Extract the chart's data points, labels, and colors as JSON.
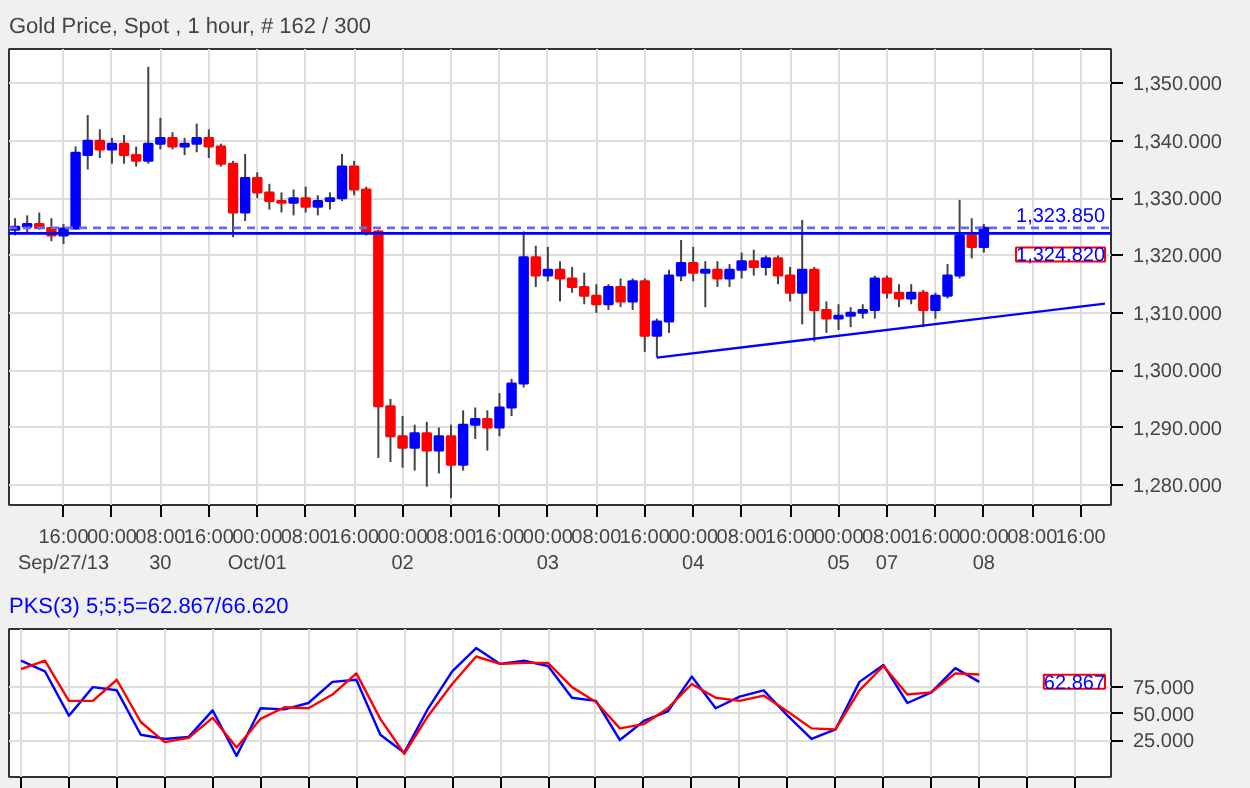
{
  "chart_data": [
    {
      "type": "candlestick",
      "title": "Gold Price, Spot , 1 hour, # 162 / 300",
      "grid": true,
      "categories": [
        null,
        null,
        null,
        null,
        "16:00\nSep/27/13",
        null,
        null,
        null,
        "00:00",
        null,
        null,
        null,
        "08:00\n30",
        null,
        null,
        null,
        "16:00",
        null,
        null,
        null,
        "00:00\nOct/01",
        null,
        null,
        null,
        "08:00",
        null,
        null,
        null,
        "16:00",
        null,
        null,
        null,
        "00:00\n02",
        null,
        null,
        null,
        "08:00",
        null,
        null,
        null,
        "16:00",
        null,
        null,
        null,
        "00:00\n03",
        null,
        null,
        null,
        "08:00",
        null,
        null,
        null,
        "16:00",
        null,
        null,
        null,
        "00:00\n04",
        null,
        null,
        null,
        "08:00",
        null,
        null,
        null,
        "16:00",
        null,
        null,
        null,
        "00:00\n05",
        null,
        null,
        null,
        "08:00\n07",
        null,
        null,
        null,
        "16:00",
        null,
        null,
        null,
        "00:00\n08",
        null,
        null,
        null,
        "08:00",
        null,
        null,
        null,
        "16:00",
        null,
        null
      ],
      "ohlc": [
        [
          1324.5,
          1326.5,
          1323.5,
          1325
        ],
        [
          1325,
          1327,
          1324,
          1325.5
        ],
        [
          1325.5,
          1327.5,
          1324.5,
          1324.8
        ],
        [
          1324.8,
          1326.5,
          1322.5,
          1323.5
        ],
        [
          1323.5,
          1325.5,
          1322,
          1324.7
        ],
        [
          1324.7,
          1339,
          1324.5,
          1337.9
        ],
        [
          1337.5,
          1344.5,
          1335,
          1340
        ],
        [
          1340,
          1342,
          1337,
          1338.5
        ],
        [
          1338.5,
          1340.5,
          1336,
          1339.5
        ],
        [
          1339.5,
          1341,
          1336,
          1337.5
        ],
        [
          1337.5,
          1339,
          1335.5,
          1336.5
        ],
        [
          1336.5,
          1352.9,
          1336,
          1339.5
        ],
        [
          1339.5,
          1344,
          1338.5,
          1340.5
        ],
        [
          1340.5,
          1341.5,
          1338.5,
          1339
        ],
        [
          1339,
          1340.5,
          1337.5,
          1339.5
        ],
        [
          1339.5,
          1343,
          1338,
          1340.5
        ],
        [
          1340.5,
          1342,
          1337,
          1339
        ],
        [
          1339,
          1339.5,
          1335.5,
          1336
        ],
        [
          1336,
          1336.5,
          1323.2,
          1327.5
        ],
        [
          1327.5,
          1337.7,
          1326,
          1333.5
        ],
        [
          1333.5,
          1334.5,
          1330,
          1331
        ],
        [
          1331,
          1332.5,
          1328,
          1329.5
        ],
        [
          1329.5,
          1331,
          1327.5,
          1329.2
        ],
        [
          1329.2,
          1331.5,
          1327,
          1330
        ],
        [
          1330,
          1332,
          1327.5,
          1328.5
        ],
        [
          1328.5,
          1330.5,
          1327,
          1329.5
        ],
        [
          1329.5,
          1331,
          1328,
          1330
        ],
        [
          1330,
          1337.7,
          1329.5,
          1335.5
        ],
        [
          1335.5,
          1336.5,
          1330.5,
          1331.5
        ],
        [
          1331.5,
          1332,
          1323.5,
          1324.2
        ],
        [
          1324.2,
          1324.5,
          1284.7,
          1293.7
        ],
        [
          1293.7,
          1295,
          1284,
          1288.5
        ],
        [
          1288.5,
          1292,
          1283,
          1286.5
        ],
        [
          1286.5,
          1290.5,
          1282.5,
          1289
        ],
        [
          1289,
          1291,
          1279.7,
          1286
        ],
        [
          1286,
          1290,
          1282,
          1288.5
        ],
        [
          1288.5,
          1290.5,
          1277.7,
          1283.5
        ],
        [
          1283.5,
          1293,
          1282.5,
          1290.5
        ],
        [
          1290.5,
          1293.5,
          1288,
          1291.5
        ],
        [
          1291.5,
          1293,
          1286,
          1290
        ],
        [
          1290,
          1296,
          1288.5,
          1293.5
        ],
        [
          1293.5,
          1298.5,
          1292,
          1297.7
        ],
        [
          1297.7,
          1324.2,
          1297,
          1319.7
        ],
        [
          1319.7,
          1321.7,
          1314.5,
          1316.5
        ],
        [
          1316.5,
          1321.5,
          1315.5,
          1317.5
        ],
        [
          1317.5,
          1319,
          1312,
          1316
        ],
        [
          1316,
          1318,
          1313.5,
          1314.5
        ],
        [
          1314.5,
          1317,
          1311.5,
          1313
        ],
        [
          1313,
          1315,
          1310,
          1311.5
        ],
        [
          1311.5,
          1315,
          1310.5,
          1314.5
        ],
        [
          1314.5,
          1316,
          1311,
          1312
        ],
        [
          1312,
          1316,
          1310.5,
          1315.5
        ],
        [
          1315.5,
          1316,
          1303.2,
          1306
        ],
        [
          1306,
          1309,
          1302.2,
          1308.5
        ],
        [
          1308.5,
          1317.5,
          1306.5,
          1316.5
        ],
        [
          1316.5,
          1322.7,
          1315.5,
          1318.7
        ],
        [
          1318.7,
          1321.5,
          1315.5,
          1317
        ],
        [
          1317,
          1319,
          1311,
          1317.5
        ],
        [
          1317.5,
          1319,
          1314.5,
          1316
        ],
        [
          1316,
          1318.5,
          1314.5,
          1317.5
        ],
        [
          1317.5,
          1320.5,
          1316,
          1319
        ],
        [
          1319,
          1321,
          1316.5,
          1318
        ],
        [
          1318,
          1320,
          1316.5,
          1319.5
        ],
        [
          1319.5,
          1320,
          1315,
          1316.5
        ],
        [
          1316.5,
          1318,
          1312,
          1313.5
        ],
        [
          1313.5,
          1326.2,
          1308,
          1317.5
        ],
        [
          1317.5,
          1318,
          1305,
          1310.5
        ],
        [
          1310.5,
          1312,
          1306.5,
          1309
        ],
        [
          1309,
          1311.5,
          1307,
          1309.5
        ],
        [
          1309.5,
          1311,
          1307.5,
          1310
        ],
        [
          1310,
          1311.5,
          1309,
          1310.5
        ],
        [
          1310.5,
          1316.5,
          1309,
          1316
        ],
        [
          1316,
          1316.5,
          1312.5,
          1313.5
        ],
        [
          1313.5,
          1315,
          1311,
          1312.5
        ],
        [
          1312.5,
          1315,
          1311.5,
          1313.5
        ],
        [
          1313.5,
          1314,
          1307.5,
          1310.5
        ],
        [
          1310.5,
          1313.5,
          1309,
          1313
        ],
        [
          1313,
          1318.5,
          1312.5,
          1316.5
        ],
        [
          1316.5,
          1329.7,
          1316,
          1323.5
        ],
        [
          1323.5,
          1326.5,
          1319.5,
          1321.5
        ],
        [
          1321.5,
          1325.5,
          1320.5,
          1324.82
        ],
        null,
        null,
        null,
        null,
        null,
        null,
        null,
        null,
        null,
        null
      ],
      "colors": [
        "#0000ff",
        "#0000ff",
        "#ff0000",
        "#ff0000",
        "#0000ff",
        "#0000ff",
        "#0000ff",
        "#ff0000",
        "#0000ff",
        "#ff0000",
        "#ff0000",
        "#0000ff",
        "#0000ff",
        "#ff0000",
        "#0000ff",
        "#0000ff",
        "#ff0000",
        "#ff0000",
        "#ff0000",
        "#0000ff",
        "#ff0000",
        "#ff0000",
        "#ff0000",
        "#0000ff",
        "#ff0000",
        "#0000ff",
        "#0000ff",
        "#0000ff",
        "#ff0000",
        "#ff0000",
        "#ff0000",
        "#ff0000",
        "#ff0000",
        "#0000ff",
        "#ff0000",
        "#0000ff",
        "#ff0000",
        "#0000ff",
        "#0000ff",
        "#ff0000",
        "#0000ff",
        "#0000ff",
        "#0000ff",
        "#ff0000",
        "#0000ff",
        "#ff0000",
        "#ff0000",
        "#ff0000",
        "#ff0000",
        "#0000ff",
        "#ff0000",
        "#0000ff",
        "#ff0000",
        "#0000ff",
        "#0000ff",
        "#0000ff",
        "#ff0000",
        "#0000ff",
        "#ff0000",
        "#0000ff",
        "#0000ff",
        "#ff0000",
        "#0000ff",
        "#ff0000",
        "#ff0000",
        "#0000ff",
        "#ff0000",
        "#ff0000",
        "#0000ff",
        "#0000ff",
        "#0000ff",
        "#0000ff",
        "#ff0000",
        "#ff0000",
        "#0000ff",
        "#ff0000",
        "#0000ff",
        "#0000ff",
        "#0000ff",
        "#ff0000",
        "#0000ff",
        null,
        null,
        null,
        null,
        null,
        null,
        null,
        null,
        null,
        null
      ],
      "series": [
        {
          "type": "line",
          "color": "#0000ff",
          "values": [
            null,
            null,
            null,
            null,
            null,
            null,
            null,
            null,
            null,
            null,
            null,
            null,
            null,
            null,
            null,
            null,
            null,
            null,
            null,
            null,
            null,
            null,
            null,
            null,
            null,
            null,
            null,
            null,
            null,
            null,
            null,
            null,
            null,
            null,
            null,
            null,
            null,
            null,
            null,
            null,
            null,
            null,
            null,
            null,
            null,
            null,
            null,
            null,
            null,
            null,
            null,
            null,
            null,
            1302.2,
            null,
            null,
            null,
            null,
            null,
            null,
            null,
            null,
            null,
            null,
            null,
            null,
            null,
            null,
            null,
            null,
            null,
            null,
            null,
            null,
            null,
            null,
            null,
            null,
            null,
            null,
            null,
            null,
            null,
            null,
            null,
            null,
            null,
            null,
            null,
            null,
            1311.6
          ]
        }
      ],
      "ref_lines": [
        {
          "axis": "y",
          "value": 1323.85,
          "label": "1,323.850",
          "color": "#0000ff",
          "line_style": "solid"
        },
        {
          "axis": "y",
          "value": 1324.82,
          "label": "1,324.820",
          "color": "#6666ff",
          "line_style": "dashed"
        }
      ],
      "ylim": [
        1276.5,
        1356
      ],
      "yticks": [
        {
          "value": 1280,
          "label": "1,280.000"
        },
        {
          "value": 1290,
          "label": "1,290.000"
        },
        {
          "value": 1300,
          "label": "1,300.000"
        },
        {
          "value": 1310,
          "label": "1,310.000"
        },
        {
          "value": 1320,
          "label": "1,320.000"
        },
        {
          "value": 1330,
          "label": "1,330.000"
        },
        {
          "value": 1340,
          "label": "1,340.000"
        },
        {
          "value": 1350,
          "label": "1,350.000"
        }
      ]
    },
    {
      "type": "line",
      "title": "PKS(3) 5;5;5=62.867/66.620",
      "grid": true,
      "annotations": [
        "62.867"
      ],
      "categories": [
        null,
        null,
        null,
        null,
        null,
        null,
        null,
        null,
        null,
        null,
        null,
        null,
        null,
        null,
        null,
        null,
        null,
        null,
        null,
        null,
        null,
        null,
        null,
        null,
        null,
        null,
        null,
        null,
        null,
        null,
        null,
        null,
        null,
        null,
        null,
        null,
        null,
        null,
        null,
        null,
        null,
        null,
        null,
        null,
        null,
        null
      ],
      "series": [
        {
          "color": "#0000ff",
          "values": [
            100,
            90,
            48,
            75,
            72,
            30,
            26,
            28,
            53,
            10,
            55,
            54,
            60,
            80,
            82,
            30,
            13,
            55,
            90,
            112,
            97,
            100,
            95,
            65,
            62,
            25,
            43,
            52,
            85,
            55,
            66,
            72,
            48,
            26,
            35,
            80,
            96,
            60,
            70,
            93,
            80,
            null,
            null,
            null,
            null,
            null
          ]
        },
        {
          "color": "#ff0000",
          "values": [
            92,
            100,
            62,
            62,
            82,
            42,
            23,
            27,
            46,
            18,
            45,
            56,
            55,
            68,
            88,
            45,
            12,
            48,
            78,
            104,
            97,
            98,
            98,
            75,
            61,
            36,
            40,
            55,
            78,
            65,
            62,
            67,
            52,
            36,
            35,
            72,
            95,
            68,
            70,
            88,
            87,
            null,
            null,
            null,
            null,
            null
          ]
        }
      ],
      "ylim": [
        -10,
        130
      ],
      "yticks": [
        {
          "value": 25,
          "label": "25.000"
        },
        {
          "value": 50,
          "label": "50.000"
        },
        {
          "value": 75,
          "label": "75.000"
        }
      ]
    }
  ]
}
